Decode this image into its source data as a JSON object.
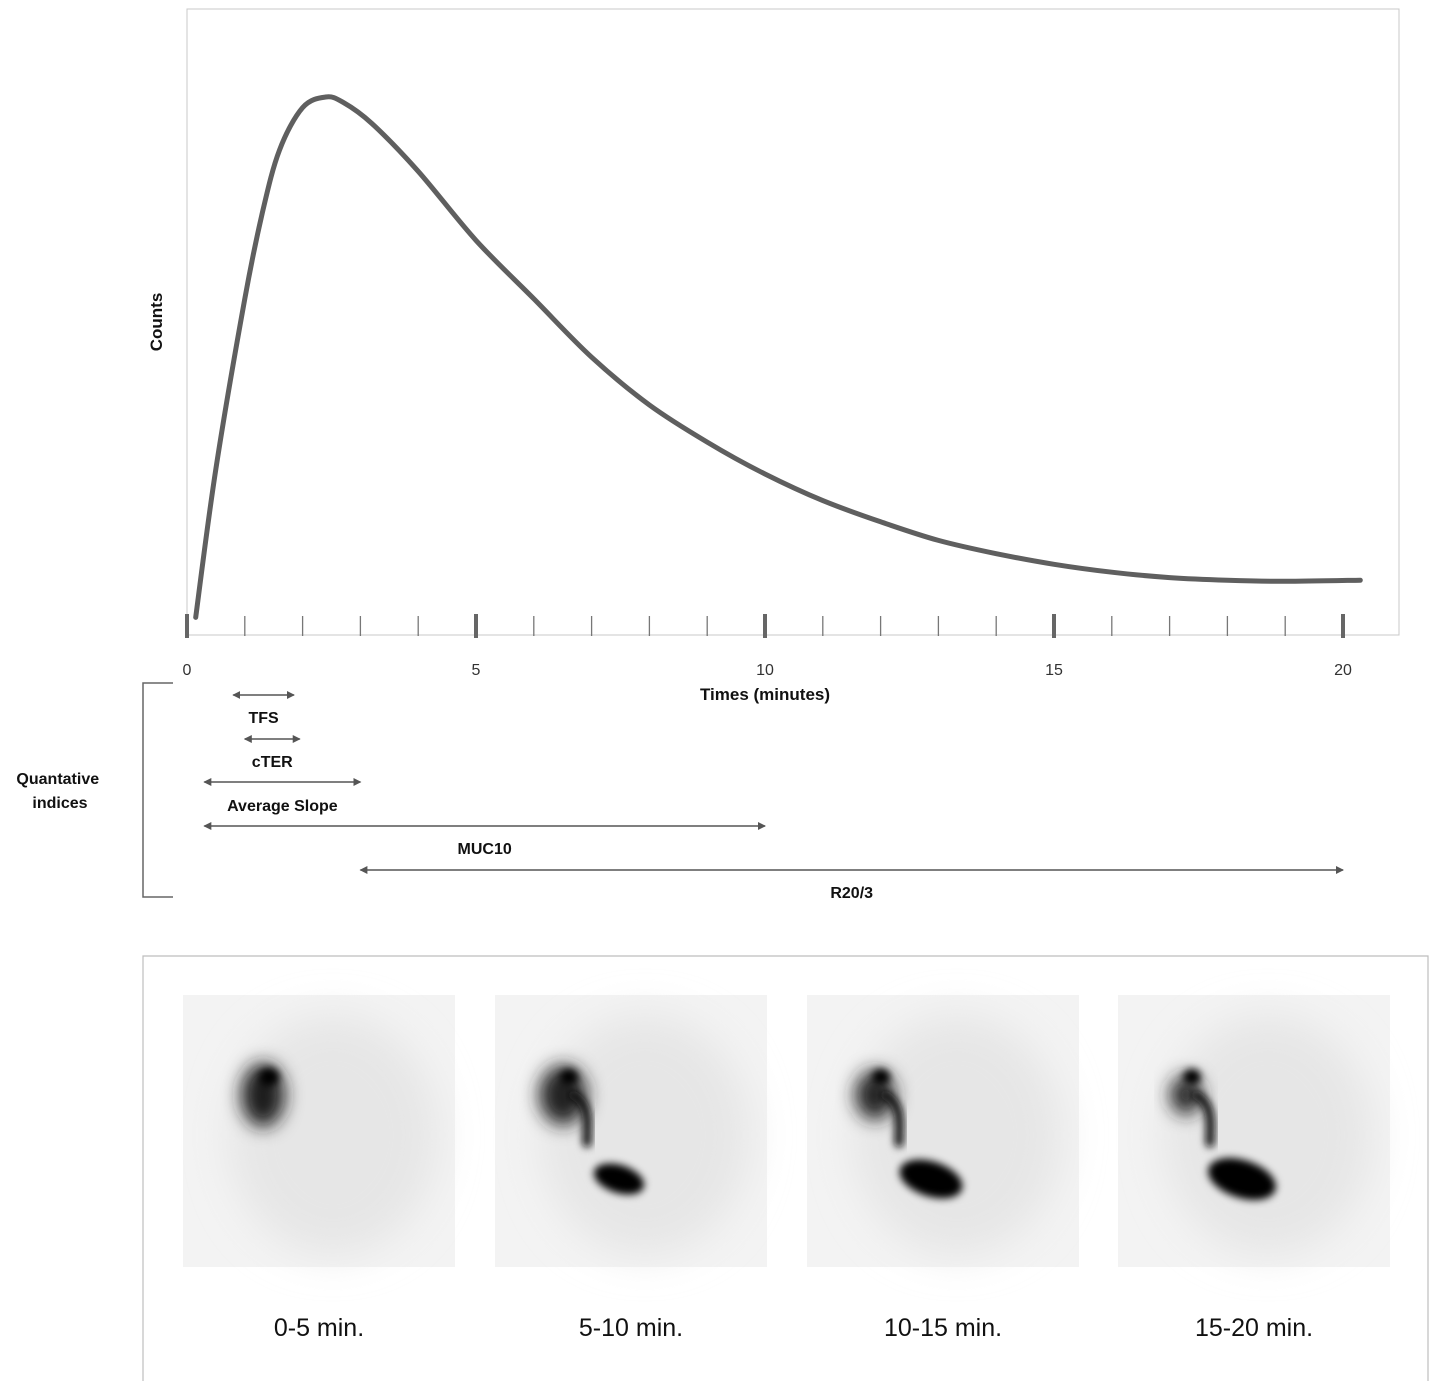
{
  "chart_data": {
    "type": "line",
    "xlabel": "Times (minutes)",
    "ylabel": "Counts",
    "xlim": [
      0,
      20
    ],
    "x_ticks_major": [
      0,
      5,
      10,
      15,
      20
    ],
    "x_tick_labels": [
      "0",
      "5",
      "10",
      "15",
      "20"
    ],
    "x_ticks_minor_step": 1,
    "series": [
      {
        "x": [
          0.15,
          0.5,
          1.0,
          1.3,
          1.6,
          2.0,
          2.4,
          2.7,
          3.2,
          4.0,
          5.0,
          6.0,
          7.0,
          8.0,
          9.0,
          10.0,
          11.0,
          12.0,
          13.0,
          14.0,
          15.0,
          16.0,
          17.0,
          18.0,
          19.0,
          20.3
        ],
        "y": [
          0.02,
          0.3,
          0.62,
          0.78,
          0.9,
          0.98,
          1.0,
          0.99,
          0.95,
          0.86,
          0.73,
          0.62,
          0.51,
          0.42,
          0.35,
          0.29,
          0.24,
          0.2,
          0.165,
          0.14,
          0.12,
          0.105,
          0.095,
          0.09,
          0.088,
          0.09
        ]
      }
    ],
    "grid": false,
    "color": "#5f5f5f"
  },
  "indices": {
    "group_label_line1": "Quantative",
    "group_label_line2": "indices",
    "items": [
      {
        "label": "TFS",
        "start": 0.8,
        "end": 1.85
      },
      {
        "label": "cTER",
        "start": 1.0,
        "end": 1.95
      },
      {
        "label": "Average Slope",
        "start": 0.3,
        "end": 3.0
      },
      {
        "label": "MUC10",
        "start": 0.3,
        "end": 10.0
      },
      {
        "label": "R20/3",
        "start": 3.0,
        "end": 20.0
      }
    ]
  },
  "frames": [
    {
      "caption": "0-5 min."
    },
    {
      "caption": "5-10 min."
    },
    {
      "caption": "10-15 min."
    },
    {
      "caption": "15-20 min."
    }
  ]
}
